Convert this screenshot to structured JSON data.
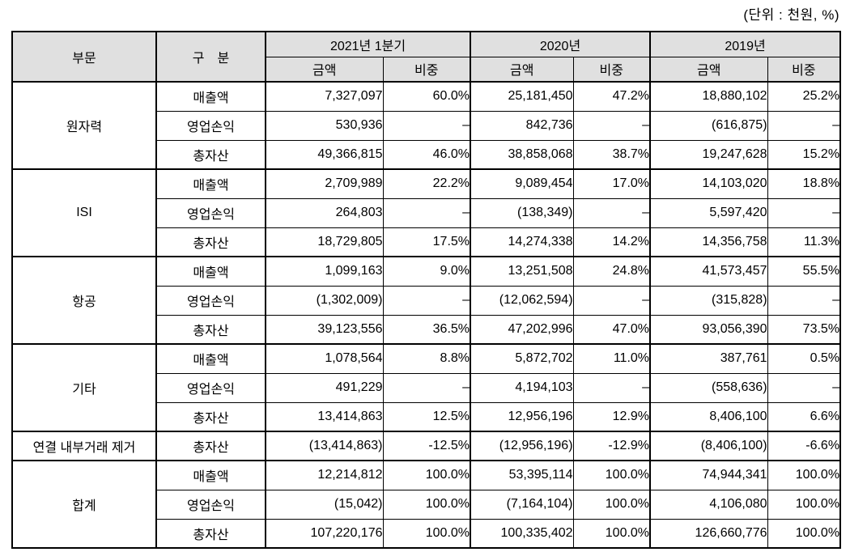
{
  "unit_label": "(단위 : 천원, %)",
  "colors": {
    "header_bg": "#e0e0e0",
    "border": "#000000",
    "text": "#000000"
  },
  "table": {
    "col_headers": {
      "division": "부문",
      "category": "구　분",
      "amount": "금액",
      "ratio": "비중",
      "periods": [
        "2021년 1분기",
        "2020년",
        "2019년"
      ]
    },
    "sections": [
      {
        "division": "원자력",
        "rows": [
          {
            "category": "매출액",
            "values": [
              "7,327,097",
              "60.0%",
              "25,181,450",
              "47.2%",
              "18,880,102",
              "25.2%"
            ]
          },
          {
            "category": "영업손익",
            "values": [
              "530,936",
              "–",
              "842,736",
              "–",
              "(616,875)",
              "–"
            ]
          },
          {
            "category": "총자산",
            "values": [
              "49,366,815",
              "46.0%",
              "38,858,068",
              "38.7%",
              "19,247,628",
              "15.2%"
            ]
          }
        ]
      },
      {
        "division": "ISI",
        "rows": [
          {
            "category": "매출액",
            "values": [
              "2,709,989",
              "22.2%",
              "9,089,454",
              "17.0%",
              "14,103,020",
              "18.8%"
            ]
          },
          {
            "category": "영업손익",
            "values": [
              "264,803",
              "–",
              "(138,349)",
              "–",
              "5,597,420",
              "–"
            ]
          },
          {
            "category": "총자산",
            "values": [
              "18,729,805",
              "17.5%",
              "14,274,338",
              "14.2%",
              "14,356,758",
              "11.3%"
            ]
          }
        ]
      },
      {
        "division": "항공",
        "rows": [
          {
            "category": "매출액",
            "values": [
              "1,099,163",
              "9.0%",
              "13,251,508",
              "24.8%",
              "41,573,457",
              "55.5%"
            ]
          },
          {
            "category": "영업손익",
            "values": [
              "(1,302,009)",
              "–",
              "(12,062,594)",
              "–",
              "(315,828)",
              "–"
            ]
          },
          {
            "category": "총자산",
            "values": [
              "39,123,556",
              "36.5%",
              "47,202,996",
              "47.0%",
              "93,056,390",
              "73.5%"
            ]
          }
        ]
      },
      {
        "division": "기타",
        "rows": [
          {
            "category": "매출액",
            "values": [
              "1,078,564",
              "8.8%",
              "5,872,702",
              "11.0%",
              "387,761",
              "0.5%"
            ]
          },
          {
            "category": "영업손익",
            "values": [
              "491,229",
              "–",
              "4,194,103",
              "–",
              "(558,636)",
              "–"
            ]
          },
          {
            "category": "총자산",
            "values": [
              "13,414,863",
              "12.5%",
              "12,956,196",
              "12.9%",
              "8,406,100",
              "6.6%"
            ]
          }
        ]
      },
      {
        "division": "연결 내부거래 제거",
        "rows": [
          {
            "category": "총자산",
            "values": [
              "(13,414,863)",
              "-12.5%",
              "(12,956,196)",
              "-12.9%",
              "(8,406,100)",
              "-6.6%"
            ]
          }
        ]
      },
      {
        "division": "합계",
        "rows": [
          {
            "category": "매출액",
            "values": [
              "12,214,812",
              "100.0%",
              "53,395,114",
              "100.0%",
              "74,944,341",
              "100.0%"
            ]
          },
          {
            "category": "영업손익",
            "values": [
              "(15,042)",
              "100.0%",
              "(7,164,104)",
              "100.0%",
              "4,106,080",
              "100.0%"
            ]
          },
          {
            "category": "총자산",
            "values": [
              "107,220,176",
              "100.0%",
              "100,335,402",
              "100.0%",
              "126,660,776",
              "100.0%"
            ]
          }
        ]
      }
    ]
  }
}
